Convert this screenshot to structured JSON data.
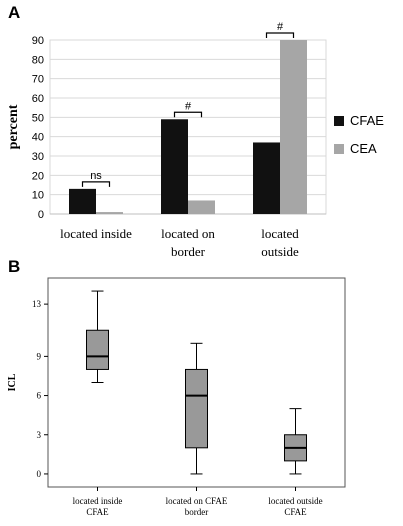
{
  "chart_data": [
    {
      "panel": "A",
      "type": "bar",
      "ylabel": "percent",
      "ylim": [
        0,
        90
      ],
      "yticks": [
        "0",
        "10",
        "20",
        "30",
        "40",
        "50",
        "60",
        "70",
        "80",
        "90"
      ],
      "grid": true,
      "legend_position": "right",
      "categories": [
        [
          "located inside"
        ],
        [
          "located on",
          "border"
        ],
        [
          "located",
          "outside"
        ]
      ],
      "series": [
        {
          "name": "CFAE",
          "color": "#111111",
          "values": [
            13,
            49,
            37
          ]
        },
        {
          "name": "CEA",
          "color": "#a6a6a6",
          "values": [
            1,
            7,
            90
          ]
        }
      ],
      "annotations": [
        "ns",
        "#",
        "#"
      ]
    },
    {
      "panel": "B",
      "type": "box",
      "ylabel": "ICL",
      "ylim": [
        -1,
        15
      ],
      "yticks": [
        "0",
        "3",
        "6",
        "9",
        "13"
      ],
      "box_color": "#999999",
      "categories": [
        [
          "located inside",
          "CFAE"
        ],
        [
          "located on CFAE",
          "border"
        ],
        [
          "located outside",
          "CFAE"
        ]
      ],
      "boxes": [
        {
          "min": 7,
          "q1": 8,
          "median": 9,
          "q3": 11,
          "max": 14
        },
        {
          "min": 0,
          "q1": 2,
          "median": 6,
          "q3": 8,
          "max": 10
        },
        {
          "min": 0,
          "q1": 1,
          "median": 2,
          "q3": 3,
          "max": 5
        }
      ]
    }
  ]
}
